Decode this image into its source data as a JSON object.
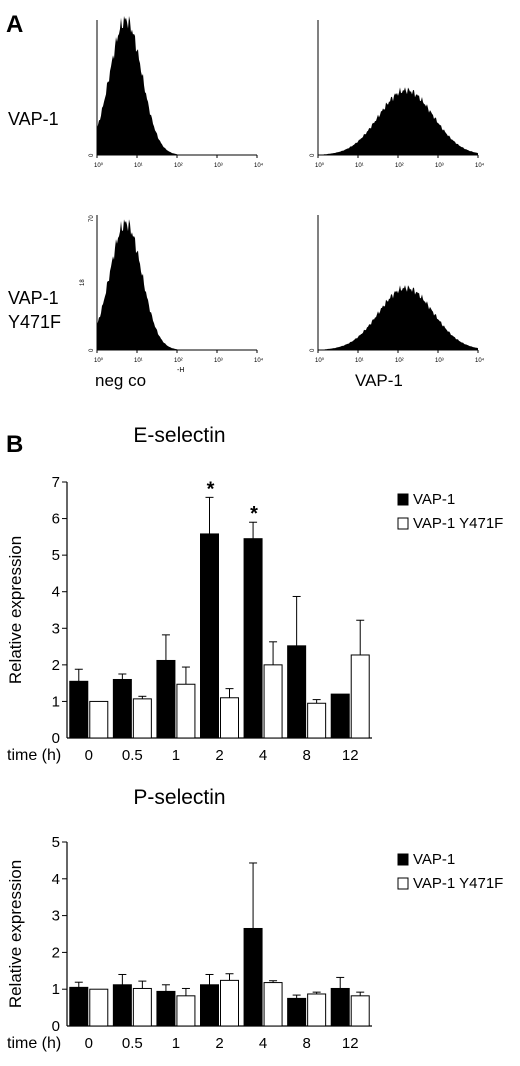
{
  "panel_labels": {
    "a": "A",
    "b": "B"
  },
  "histograms": {
    "row_labels": [
      [
        "VAP-1"
      ],
      [
        "VAP-1",
        "Y471F"
      ]
    ],
    "column_labels": [
      "neg co",
      "VAP-1"
    ],
    "x_tick_labels": [
      "10⁰",
      "10¹",
      "10²",
      "10³",
      "10⁴"
    ],
    "y_zero_label": "0",
    "y_top_label": "70",
    "y_mid_label": "18",
    "x_axis_fragment": "-H",
    "colors": {
      "fill": "#000000"
    }
  },
  "chart_data": [
    {
      "type": "bar",
      "title": "E-selectin",
      "ylabel": "Relative expression",
      "xlabel": "time (h)",
      "categories": [
        "0",
        "0.5",
        "1",
        "2",
        "4",
        "8",
        "12"
      ],
      "ylim": [
        0,
        7
      ],
      "yticks": [
        1,
        2,
        3,
        4,
        5,
        6,
        7
      ],
      "legend_position": "top-right",
      "series": [
        {
          "name": "VAP-1",
          "color": "#000000",
          "values": [
            1.55,
            1.6,
            2.12,
            5.58,
            5.45,
            2.52,
            1.2
          ],
          "errors": [
            0.33,
            0.15,
            0.7,
            1.0,
            0.45,
            1.35,
            0.0
          ]
        },
        {
          "name": "VAP-1 Y471F",
          "color": "#ffffff",
          "values": [
            1.0,
            1.07,
            1.47,
            1.1,
            2.0,
            0.95,
            2.27
          ],
          "errors": [
            0.0,
            0.07,
            0.47,
            0.25,
            0.63,
            0.1,
            0.95
          ]
        }
      ],
      "annotations": [
        {
          "category": "2",
          "text": "*"
        },
        {
          "category": "4",
          "text": "*"
        }
      ]
    },
    {
      "type": "bar",
      "title": "P-selectin",
      "ylabel": "Relative expression",
      "xlabel": "time (h)",
      "categories": [
        "0",
        "0.5",
        "1",
        "2",
        "4",
        "8",
        "12"
      ],
      "ylim": [
        0,
        5
      ],
      "yticks": [
        1,
        2,
        3,
        4,
        5
      ],
      "legend_position": "top-right",
      "series": [
        {
          "name": "VAP-1",
          "color": "#000000",
          "values": [
            1.05,
            1.12,
            0.94,
            1.12,
            2.65,
            0.75,
            1.02
          ],
          "errors": [
            0.14,
            0.28,
            0.18,
            0.28,
            1.78,
            0.09,
            0.3
          ]
        },
        {
          "name": "VAP-1 Y471F",
          "color": "#ffffff",
          "values": [
            1.0,
            1.02,
            0.82,
            1.24,
            1.18,
            0.87,
            0.82
          ],
          "errors": [
            0.0,
            0.2,
            0.2,
            0.18,
            0.05,
            0.05,
            0.1
          ]
        }
      ],
      "annotations": []
    }
  ]
}
